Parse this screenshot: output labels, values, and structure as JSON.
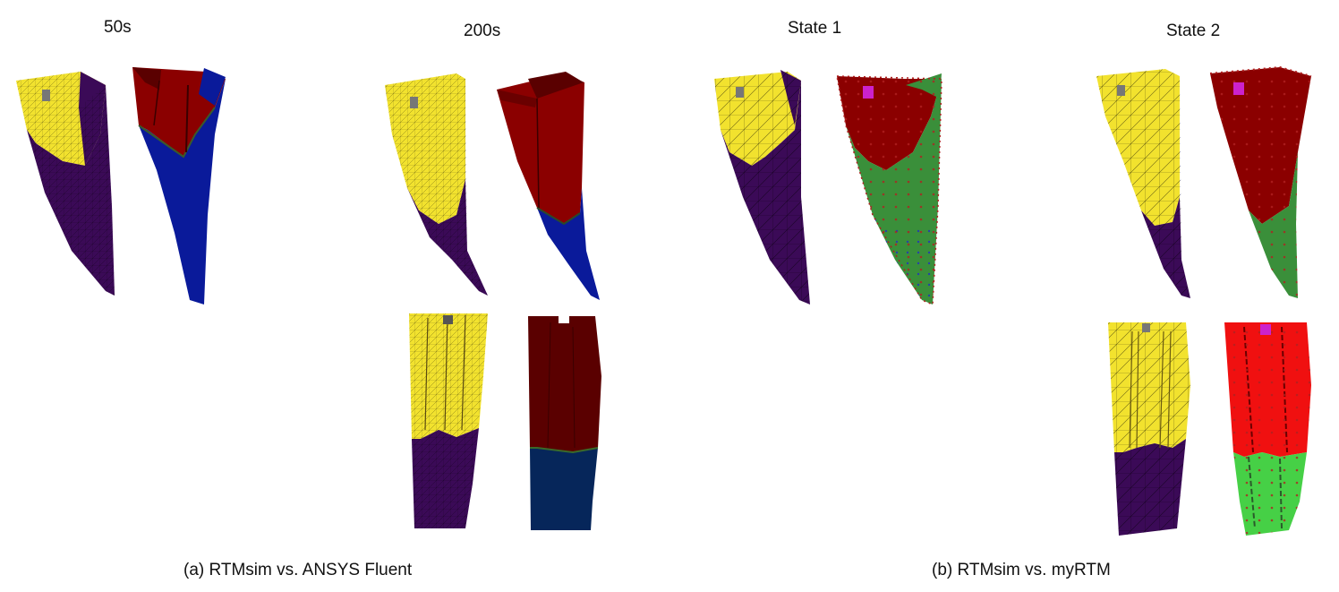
{
  "labels": {
    "t50": "50s",
    "t200": "200s",
    "state1": "State 1",
    "state2": "State 2"
  },
  "captions": {
    "a": "(a) RTMsim vs. ANSYS Fluent",
    "b": "(b) RTMsim vs. myRTM"
  },
  "colors": {
    "yellow": "#f2e22e",
    "purple": "#3b0a57",
    "dark_red": "#8b0000",
    "blue": "#0a1a9a",
    "navy": "#06265a",
    "green": "#3a8f3a",
    "bright_red": "#f01010",
    "bright_green": "#46d046",
    "magenta": "#cc22cc",
    "gray": "#777777"
  }
}
